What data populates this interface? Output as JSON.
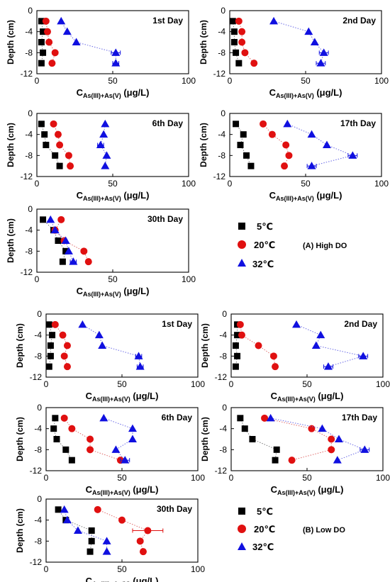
{
  "figure": {
    "y_axis_label": "Depth (cm)",
    "x_axis_label_main": "C",
    "x_axis_label_sub": "As(III)+As(V)",
    "x_axis_label_unit": " (μg/L)",
    "x_ticks": [
      "0",
      "50",
      "100"
    ],
    "y_ticks": [
      "0",
      "-4",
      "-8",
      "-12"
    ],
    "legend_A": {
      "items": [
        {
          "label": "5℃",
          "marker": "square",
          "color": "#000000"
        },
        {
          "label": "20℃",
          "marker": "circle",
          "color": "#e01010"
        },
        {
          "label": "32℃",
          "marker": "triangle",
          "color": "#1010e0"
        }
      ],
      "group_label": "(A) High DO"
    },
    "legend_B": {
      "items": [
        {
          "label": "5℃",
          "marker": "square",
          "color": "#000000"
        },
        {
          "label": "20℃",
          "marker": "circle",
          "color": "#e01010"
        },
        {
          "label": "32℃",
          "marker": "triangle",
          "color": "#1010e0"
        }
      ],
      "group_label": "(B) Low DO"
    }
  },
  "chart_data": [
    {
      "type": "scatter",
      "group": "High DO",
      "title": "1st Day",
      "xlim": [
        0,
        100
      ],
      "ylim": [
        -12,
        0
      ],
      "xlabel": "CAs(III)+As(V) (μg/L)",
      "ylabel": "Depth (cm)",
      "series": [
        {
          "name": "5℃",
          "points": [
            [
              3,
              -2
            ],
            [
              4,
              -4
            ],
            [
              3,
              -6
            ],
            [
              4,
              -8
            ],
            [
              3,
              -10
            ]
          ]
        },
        {
          "name": "20℃",
          "points": [
            [
              6,
              -2
            ],
            [
              7,
              -4
            ],
            [
              8,
              -6
            ],
            [
              12,
              -8
            ],
            [
              10,
              -10
            ]
          ]
        },
        {
          "name": "32℃",
          "points": [
            [
              16,
              -2
            ],
            [
              20,
              -4
            ],
            [
              26,
              -6
            ],
            [
              52,
              -8
            ],
            [
              52,
              -10
            ]
          ],
          "err": [
            0,
            0,
            0,
            3,
            2
          ]
        }
      ]
    },
    {
      "type": "scatter",
      "group": "High DO",
      "title": "2nd Day",
      "xlim": [
        0,
        100
      ],
      "ylim": [
        -12,
        0
      ],
      "xlabel": "CAs(III)+As(V) (μg/L)",
      "ylabel": "Depth (cm)",
      "series": [
        {
          "name": "5℃",
          "points": [
            [
              2,
              -2
            ],
            [
              3,
              -4
            ],
            [
              3,
              -6
            ],
            [
              4,
              -8
            ],
            [
              6,
              -10
            ]
          ]
        },
        {
          "name": "20℃",
          "points": [
            [
              6,
              -2
            ],
            [
              8,
              -4
            ],
            [
              8,
              -6
            ],
            [
              10,
              -8
            ],
            [
              16,
              -10
            ]
          ]
        },
        {
          "name": "32℃",
          "points": [
            [
              29,
              -2
            ],
            [
              52,
              -4
            ],
            [
              56,
              -6
            ],
            [
              62,
              -8
            ],
            [
              60,
              -10
            ]
          ],
          "err": [
            0,
            0,
            0,
            3,
            3
          ]
        }
      ]
    },
    {
      "type": "scatter",
      "group": "High DO",
      "title": "6th Day",
      "xlim": [
        0,
        100
      ],
      "ylim": [
        -12,
        0
      ],
      "xlabel": "CAs(III)+As(V) (μg/L)",
      "ylabel": "Depth (cm)",
      "series": [
        {
          "name": "5℃",
          "points": [
            [
              3,
              -2
            ],
            [
              5,
              -4
            ],
            [
              6,
              -6
            ],
            [
              12,
              -8
            ],
            [
              15,
              -10
            ]
          ]
        },
        {
          "name": "20℃",
          "points": [
            [
              11,
              -2
            ],
            [
              14,
              -4
            ],
            [
              15,
              -6
            ],
            [
              21,
              -8
            ],
            [
              22,
              -10
            ]
          ]
        },
        {
          "name": "32℃",
          "points": [
            [
              45,
              -2
            ],
            [
              44,
              -4
            ],
            [
              42,
              -6
            ],
            [
              46,
              -8
            ],
            [
              45,
              -10
            ]
          ],
          "err": [
            0,
            0,
            2,
            0,
            0
          ]
        }
      ]
    },
    {
      "type": "scatter",
      "group": "High DO",
      "title": "17th Day",
      "xlim": [
        0,
        100
      ],
      "ylim": [
        -12,
        0
      ],
      "xlabel": "CAs(III)+As(V) (μg/L)",
      "ylabel": "Depth (cm)",
      "series": [
        {
          "name": "5℃",
          "points": [
            [
              4,
              -2
            ],
            [
              9,
              -4
            ],
            [
              7,
              -6
            ],
            [
              11,
              -8
            ],
            [
              14,
              -10
            ]
          ]
        },
        {
          "name": "20℃",
          "points": [
            [
              22,
              -2
            ],
            [
              28,
              -4
            ],
            [
              37,
              -6
            ],
            [
              39,
              -8
            ],
            [
              36,
              -10
            ]
          ]
        },
        {
          "name": "32℃",
          "points": [
            [
              38,
              -2
            ],
            [
              54,
              -4
            ],
            [
              64,
              -6
            ],
            [
              81,
              -8
            ],
            [
              54,
              -10
            ]
          ],
          "err": [
            0,
            0,
            0,
            3,
            3
          ]
        }
      ]
    },
    {
      "type": "scatter",
      "group": "High DO",
      "title": "30th Day",
      "xlim": [
        0,
        100
      ],
      "ylim": [
        -12,
        0
      ],
      "xlabel": "CAs(III)+As(V) (μg/L)",
      "ylabel": "Depth (cm)",
      "series": [
        {
          "name": "5℃",
          "points": [
            [
              4,
              -2
            ],
            [
              11,
              -4
            ],
            [
              14,
              -6
            ],
            [
              19,
              -8
            ],
            [
              17,
              -10
            ]
          ]
        },
        {
          "name": "20℃",
          "points": [
            [
              16,
              -2
            ],
            [
              12,
              -4
            ],
            [
              18,
              -6
            ],
            [
              31,
              -8
            ],
            [
              34,
              -10
            ]
          ]
        },
        {
          "name": "32℃",
          "points": [
            [
              9,
              -2
            ],
            [
              12,
              -4
            ],
            [
              19,
              -6
            ],
            [
              21,
              -8
            ],
            [
              24,
              -10
            ]
          ],
          "err": [
            0,
            0,
            0,
            0,
            2
          ]
        }
      ]
    },
    {
      "type": "scatter",
      "group": "Low DO",
      "title": "1st Day",
      "xlim": [
        0,
        100
      ],
      "ylim": [
        -12,
        0
      ],
      "xlabel": "CAs(III)+As(V) (μg/L)",
      "ylabel": "Depth (cm)",
      "series": [
        {
          "name": "5℃",
          "points": [
            [
              2,
              -2
            ],
            [
              4,
              -4
            ],
            [
              3,
              -6
            ],
            [
              3,
              -8
            ],
            [
              2,
              -10
            ]
          ]
        },
        {
          "name": "20℃",
          "points": [
            [
              6,
              -2
            ],
            [
              11,
              -4
            ],
            [
              14,
              -6
            ],
            [
              12,
              -8
            ],
            [
              14,
              -10
            ]
          ]
        },
        {
          "name": "32℃",
          "points": [
            [
              24,
              -2
            ],
            [
              35,
              -4
            ],
            [
              37,
              -6
            ],
            [
              61,
              -8
            ],
            [
              62,
              -10
            ]
          ],
          "err": [
            0,
            0,
            0,
            2,
            2
          ]
        }
      ]
    },
    {
      "type": "scatter",
      "group": "Low DO",
      "title": "2nd Day",
      "xlim": [
        0,
        100
      ],
      "ylim": [
        -12,
        0
      ],
      "xlabel": "CAs(III)+As(V) (μg/L)",
      "ylabel": "Depth (cm)",
      "series": [
        {
          "name": "5℃",
          "points": [
            [
              4,
              -2
            ],
            [
              4,
              -4
            ],
            [
              3,
              -6
            ],
            [
              4,
              -8
            ],
            [
              3,
              -10
            ]
          ]
        },
        {
          "name": "20℃",
          "points": [
            [
              6,
              -2
            ],
            [
              7,
              -4
            ],
            [
              18,
              -6
            ],
            [
              28,
              -8
            ],
            [
              29,
              -10
            ]
          ]
        },
        {
          "name": "32℃",
          "points": [
            [
              43,
              -2
            ],
            [
              59,
              -4
            ],
            [
              56,
              -6
            ],
            [
              87,
              -8
            ],
            [
              64,
              -10
            ]
          ],
          "err": [
            0,
            0,
            0,
            3,
            3
          ]
        }
      ]
    },
    {
      "type": "scatter",
      "group": "Low DO",
      "title": "6th Day",
      "xlim": [
        0,
        100
      ],
      "ylim": [
        -12,
        0
      ],
      "xlabel": "CAs(III)+As(V) (μg/L)",
      "ylabel": "Depth (cm)",
      "series": [
        {
          "name": "5℃",
          "points": [
            [
              6,
              -2
            ],
            [
              5,
              -4
            ],
            [
              7,
              -6
            ],
            [
              13,
              -8
            ],
            [
              17,
              -10
            ]
          ]
        },
        {
          "name": "20℃",
          "points": [
            [
              12,
              -2
            ],
            [
              17,
              -4
            ],
            [
              29,
              -6
            ],
            [
              29,
              -8
            ],
            [
              49,
              -10
            ]
          ]
        },
        {
          "name": "32℃",
          "points": [
            [
              38,
              -2
            ],
            [
              57,
              -4
            ],
            [
              57,
              -6
            ],
            [
              46,
              -8
            ],
            [
              52,
              -10
            ]
          ],
          "err": [
            0,
            0,
            0,
            0,
            3
          ]
        }
      ]
    },
    {
      "type": "scatter",
      "group": "Low DO",
      "title": "17th Day",
      "xlim": [
        0,
        100
      ],
      "ylim": [
        -12,
        0
      ],
      "xlabel": "CAs(III)+As(V) (μg/L)",
      "ylabel": "Depth (cm)",
      "series": [
        {
          "name": "5℃",
          "points": [
            [
              6,
              -2
            ],
            [
              9,
              -4
            ],
            [
              14,
              -6
            ],
            [
              30,
              -8
            ],
            [
              29,
              -10
            ]
          ]
        },
        {
          "name": "20℃",
          "points": [
            [
              22,
              -2
            ],
            [
              53,
              -4
            ],
            [
              66,
              -6
            ],
            [
              66,
              -8
            ],
            [
              40,
              -10
            ]
          ]
        },
        {
          "name": "32℃",
          "points": [
            [
              26,
              -2
            ],
            [
              60,
              -4
            ],
            [
              71,
              -6
            ],
            [
              88,
              -8
            ],
            [
              70,
              -10
            ]
          ],
          "err": [
            0,
            0,
            0,
            3,
            0
          ]
        }
      ]
    },
    {
      "type": "scatter",
      "group": "Low DO",
      "title": "30th Day",
      "xlim": [
        0,
        100
      ],
      "ylim": [
        -12,
        0
      ],
      "xlabel": "CAs(III)+As(V) (μg/L)",
      "ylabel": "Depth (cm)",
      "series": [
        {
          "name": "5℃",
          "points": [
            [
              8,
              -2
            ],
            [
              13,
              -4
            ],
            [
              30,
              -6
            ],
            [
              30,
              -8
            ],
            [
              29,
              -10
            ]
          ]
        },
        {
          "name": "20℃",
          "points": [
            [
              34,
              -2
            ],
            [
              50,
              -4
            ],
            [
              67,
              -6
            ],
            [
              62,
              -8
            ],
            [
              64,
              -10
            ]
          ],
          "err": [
            0,
            0,
            10,
            0,
            0
          ]
        },
        {
          "name": "32℃",
          "points": [
            [
              12,
              -2
            ],
            [
              14,
              -4
            ],
            [
              21,
              -6
            ],
            [
              40,
              -8
            ],
            [
              40,
              -10
            ]
          ]
        }
      ]
    }
  ]
}
